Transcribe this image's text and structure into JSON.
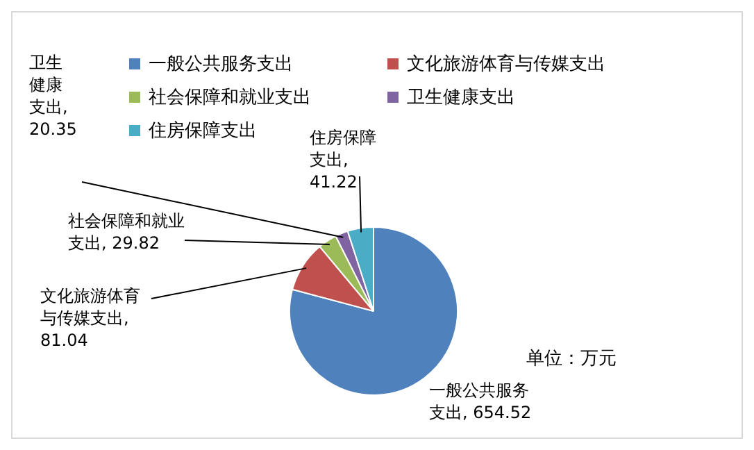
{
  "chart_data": {
    "type": "pie",
    "categories": [
      "一般公共服务支出",
      "文化旅游体育与传媒支出",
      "社会保障和就业支出",
      "卫生健康支出",
      "住房保障支出"
    ],
    "values": [
      654.52,
      81.04,
      29.82,
      20.35,
      41.22
    ],
    "colors": [
      "#4f81bd",
      "#c0504d",
      "#9bbb59",
      "#8064a2",
      "#4bacc6"
    ],
    "value_labels": [
      "一般公共服务支出, 654.52",
      "文化旅游体育与传媒支出, 81.04",
      "社会保障和就业支出, 29.82",
      "卫生健康支出, 20.35",
      "住房保障支出, 41.22"
    ],
    "legend": "top",
    "annotations": [
      "单位：万元"
    ]
  }
}
